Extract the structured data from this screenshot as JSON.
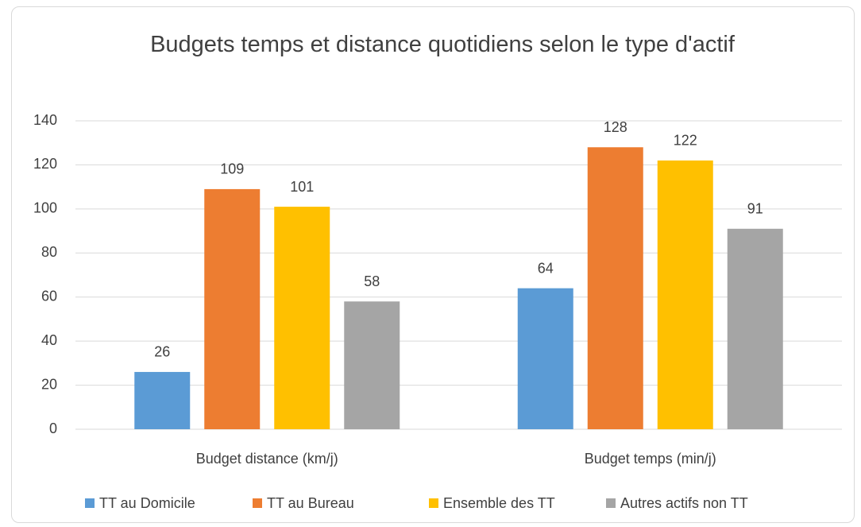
{
  "chart_data": {
    "type": "bar",
    "title": "Budgets temps et distance quotidiens selon le type d'actif",
    "categories": [
      "Budget distance (km/j)",
      "Budget temps (min/j)"
    ],
    "series": [
      {
        "name": "TT au Domicile",
        "color": "#5b9bd5",
        "values": [
          26,
          64
        ]
      },
      {
        "name": "TT au Bureau",
        "color": "#ed7d31",
        "values": [
          109,
          128
        ]
      },
      {
        "name": "Ensemble des TT",
        "color": "#ffc000",
        "values": [
          101,
          122
        ]
      },
      {
        "name": "Autres actifs non TT",
        "color": "#a5a5a5",
        "values": [
          58,
          91
        ]
      }
    ],
    "ylim": [
      0,
      140
    ],
    "yticks": [
      0,
      20,
      40,
      60,
      80,
      100,
      120,
      140
    ],
    "grid": true,
    "legend": "bottom"
  }
}
